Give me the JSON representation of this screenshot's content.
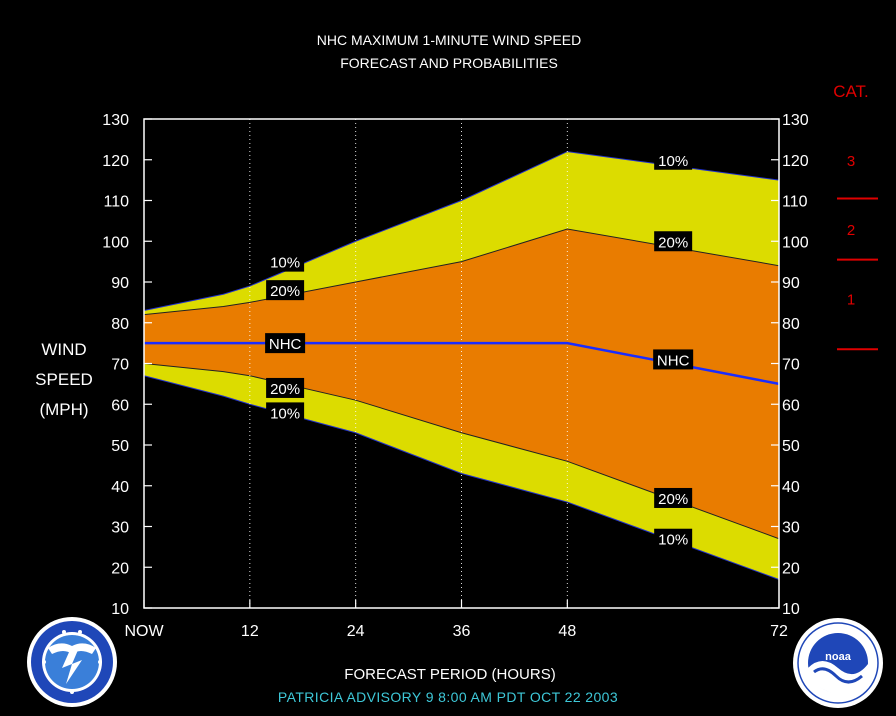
{
  "title_line1": "NHC MAXIMUM 1-MINUTE WIND SPEED",
  "title_line2": "FORECAST AND PROBABILITIES",
  "ylabel_lines": [
    "WIND",
    "SPEED",
    "(MPH)"
  ],
  "xlabel": "FORECAST PERIOD (HOURS)",
  "advisory": "PATRICIA   ADVISORY  9  8:00  AM  PDT  OCT  22  2003",
  "category_title": "CAT.",
  "categories": [
    "3",
    "2",
    "1"
  ],
  "colors": {
    "background": "#000000",
    "outer_band": "#dcdc00",
    "inner_band": "#e97c00",
    "nhc_line": "#1a2cff",
    "text": "#ffffff",
    "category": "#e00000",
    "advisory": "#3ec8d8"
  },
  "logos": {
    "left": "nws-logo",
    "right": "noaa-logo"
  },
  "chart_data": {
    "type": "area",
    "title": "NHC MAXIMUM 1-MINUTE WIND SPEED FORECAST AND PROBABILITIES",
    "xlabel": "FORECAST PERIOD (HOURS)",
    "ylabel": "WIND SPEED (MPH)",
    "xlim": [
      0,
      72
    ],
    "ylim": [
      10,
      130
    ],
    "x_ticks": [
      {
        "value": 0,
        "label": "NOW"
      },
      {
        "value": 12,
        "label": "12"
      },
      {
        "value": 24,
        "label": "24"
      },
      {
        "value": 36,
        "label": "36"
      },
      {
        "value": 48,
        "label": "48"
      },
      {
        "value": 72,
        "label": "72"
      }
    ],
    "y_ticks": [
      10,
      20,
      30,
      40,
      50,
      60,
      70,
      80,
      90,
      100,
      110,
      120,
      130
    ],
    "x": [
      0,
      9,
      12,
      24,
      36,
      48,
      72
    ],
    "series": [
      {
        "name": "10%",
        "values": [
          83,
          87,
          89,
          100,
          110,
          122,
          115
        ]
      },
      {
        "name": "20%",
        "values": [
          82,
          84,
          85,
          90,
          95,
          103,
          94
        ]
      },
      {
        "name": "NHC",
        "values": [
          75,
          75,
          75,
          75,
          75,
          75,
          65
        ]
      },
      {
        "name": "20%",
        "values": [
          70,
          68,
          67,
          61,
          53,
          46,
          27
        ]
      },
      {
        "name": "10%",
        "values": [
          67,
          62,
          60,
          53,
          43,
          36,
          17
        ]
      }
    ],
    "wind_categories": [
      {
        "category": "1",
        "min_mph": 74,
        "max_mph": 95
      },
      {
        "category": "2",
        "min_mph": 96,
        "max_mph": 110
      },
      {
        "category": "3",
        "min_mph": 111,
        "max_mph": 130
      }
    ],
    "band_labels": [
      {
        "text": "10%",
        "x": 16,
        "y": 95
      },
      {
        "text": "20%",
        "x": 16,
        "y": 88
      },
      {
        "text": "NHC",
        "x": 16,
        "y": 75
      },
      {
        "text": "20%",
        "x": 16,
        "y": 64
      },
      {
        "text": "10%",
        "x": 16,
        "y": 58
      },
      {
        "text": "10%",
        "x": 60,
        "y": 120
      },
      {
        "text": "20%",
        "x": 60,
        "y": 100
      },
      {
        "text": "NHC",
        "x": 60,
        "y": 71
      },
      {
        "text": "20%",
        "x": 60,
        "y": 37
      },
      {
        "text": "10%",
        "x": 60,
        "y": 27
      }
    ],
    "grid": "vertical dotted lines at 12, 24, 36, 48",
    "legend": "none"
  }
}
